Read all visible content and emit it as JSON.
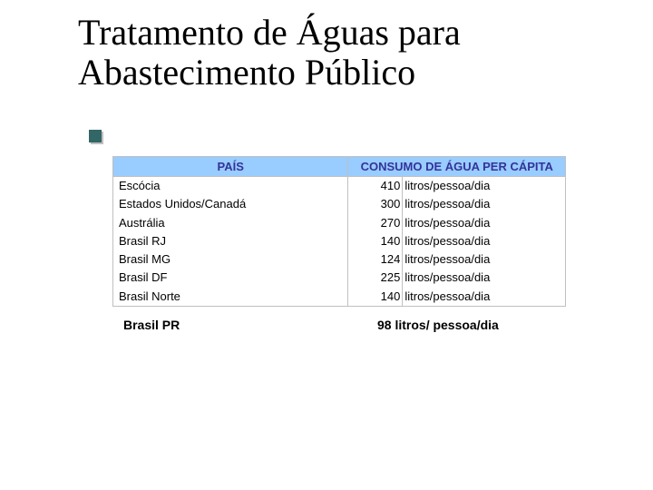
{
  "title": "Tratamento de Águas para Abastecimento Público",
  "colors": {
    "header_bg": "#99ccff",
    "header_text": "#333399",
    "border": "#c0c0c0",
    "accent": "#336666",
    "text": "#000000",
    "background": "#ffffff"
  },
  "table": {
    "type": "table",
    "columns": [
      "PAÍS",
      "CONSUMO DE ÁGUA PER CÁPITA"
    ],
    "rows": [
      {
        "country": "Escócia",
        "value": "410",
        "unit": "litros/pessoa/dia"
      },
      {
        "country": "Estados Unidos/Canadá",
        "value": "300",
        "unit": "litros/pessoa/dia"
      },
      {
        "country": "Austrália",
        "value": "270",
        "unit": "litros/pessoa/dia"
      },
      {
        "country": "Brasil RJ",
        "value": "140",
        "unit": "litros/pessoa/dia"
      },
      {
        "country": "Brasil MG",
        "value": "124",
        "unit": "litros/pessoa/dia"
      },
      {
        "country": "Brasil DF",
        "value": "225",
        "unit": "litros/pessoa/dia"
      },
      {
        "country": "Brasil Norte",
        "value": "140",
        "unit": "litros/pessoa/dia"
      }
    ]
  },
  "extra": {
    "country": "Brasil PR",
    "consumption": "98 litros/ pessoa/dia"
  },
  "fonts": {
    "title_family": "Times New Roman",
    "title_size_pt": 30,
    "body_family": "Arial",
    "header_size_pt": 10,
    "cell_size_pt": 10,
    "extra_size_pt": 11
  }
}
